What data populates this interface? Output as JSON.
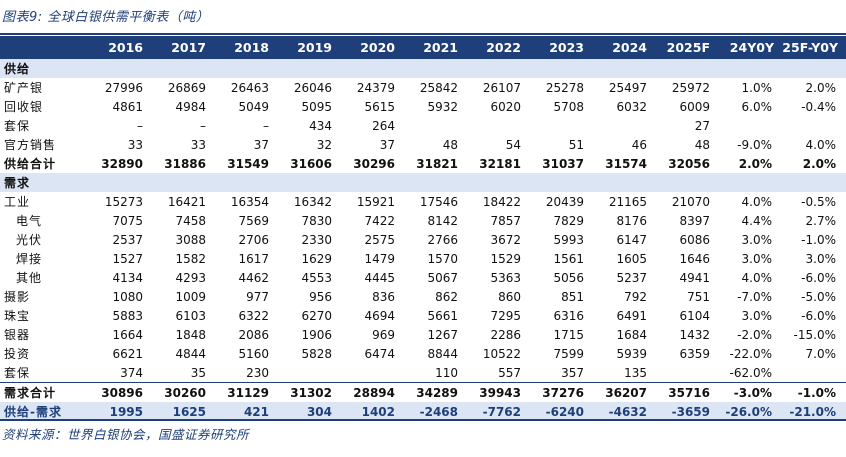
{
  "title": "图表9:  全球白银供需平衡表（吨）",
  "source": "资料来源：世界白银协会，国盛证券研究所",
  "headers": [
    "",
    "2016",
    "2017",
    "2018",
    "2019",
    "2020",
    "2021",
    "2022",
    "2023",
    "2024",
    "2025F",
    "24Y0Y",
    "25F-Y0Y"
  ],
  "rows": [
    {
      "type": "section",
      "cells": [
        "供给",
        "",
        "",
        "",
        "",
        "",
        "",
        "",
        "",
        "",
        "",
        "",
        ""
      ]
    },
    {
      "type": "data",
      "cells": [
        "矿产银",
        "27996",
        "26869",
        "26463",
        "26046",
        "24379",
        "25842",
        "26107",
        "25278",
        "25497",
        "25972",
        "1.0%",
        "2.0%"
      ]
    },
    {
      "type": "data",
      "cells": [
        "回收银",
        "4861",
        "4984",
        "5049",
        "5095",
        "5615",
        "5932",
        "6020",
        "5708",
        "6032",
        "6009",
        "6.0%",
        "-0.4%"
      ]
    },
    {
      "type": "data",
      "cells": [
        "套保",
        "–",
        "–",
        "–",
        "434",
        "264",
        "",
        "",
        "",
        "",
        "27",
        "",
        ""
      ]
    },
    {
      "type": "data",
      "cells": [
        "官方销售",
        "33",
        "33",
        "37",
        "32",
        "37",
        "48",
        "54",
        "51",
        "46",
        "48",
        "-9.0%",
        "4.0%"
      ]
    },
    {
      "type": "total",
      "cells": [
        "供给合计",
        "32890",
        "31886",
        "31549",
        "31606",
        "30296",
        "31821",
        "32181",
        "31037",
        "31574",
        "32056",
        "2.0%",
        "2.0%"
      ]
    },
    {
      "type": "section",
      "cells": [
        "需求",
        "",
        "",
        "",
        "",
        "",
        "",
        "",
        "",
        "",
        "",
        "",
        ""
      ]
    },
    {
      "type": "data",
      "cells": [
        "工业",
        "15273",
        "16421",
        "16354",
        "16342",
        "15921",
        "17546",
        "18422",
        "20439",
        "21165",
        "21070",
        "4.0%",
        "-0.5%"
      ]
    },
    {
      "type": "sub",
      "cells": [
        "电气",
        "7075",
        "7458",
        "7569",
        "7830",
        "7422",
        "8142",
        "7857",
        "7829",
        "8176",
        "8397",
        "4.4%",
        "2.7%"
      ]
    },
    {
      "type": "sub",
      "cells": [
        "光伏",
        "2537",
        "3088",
        "2706",
        "2330",
        "2575",
        "2766",
        "3672",
        "5993",
        "6147",
        "6086",
        "3.0%",
        "-1.0%"
      ]
    },
    {
      "type": "sub",
      "cells": [
        "焊接",
        "1527",
        "1582",
        "1617",
        "1629",
        "1479",
        "1570",
        "1529",
        "1561",
        "1605",
        "1646",
        "3.0%",
        "3.0%"
      ]
    },
    {
      "type": "sub",
      "cells": [
        "其他",
        "4134",
        "4293",
        "4462",
        "4553",
        "4445",
        "5067",
        "5363",
        "5056",
        "5237",
        "4941",
        "4.0%",
        "-6.0%"
      ]
    },
    {
      "type": "data",
      "cells": [
        "摄影",
        "1080",
        "1009",
        "977",
        "956",
        "836",
        "862",
        "860",
        "851",
        "792",
        "751",
        "-7.0%",
        "-5.0%"
      ]
    },
    {
      "type": "data",
      "cells": [
        "珠宝",
        "5883",
        "6103",
        "6322",
        "6270",
        "4694",
        "5661",
        "7295",
        "6316",
        "6491",
        "6104",
        "3.0%",
        "-6.0%"
      ]
    },
    {
      "type": "data",
      "cells": [
        "银器",
        "1664",
        "1848",
        "2086",
        "1906",
        "969",
        "1267",
        "2286",
        "1715",
        "1684",
        "1432",
        "-2.0%",
        "-15.0%"
      ]
    },
    {
      "type": "data",
      "cells": [
        "投资",
        "6621",
        "4844",
        "5160",
        "5828",
        "6474",
        "8844",
        "10522",
        "7599",
        "5939",
        "6359",
        "-22.0%",
        "7.0%"
      ]
    },
    {
      "type": "data",
      "cells": [
        "套保",
        "374",
        "35",
        "230",
        "",
        "",
        "110",
        "557",
        "357",
        "135",
        "",
        "-62.0%",
        ""
      ]
    },
    {
      "type": "total",
      "cells": [
        "需求合计",
        "30896",
        "30260",
        "31129",
        "31302",
        "28894",
        "34289",
        "39943",
        "37276",
        "36207",
        "35716",
        "-3.0%",
        "-1.0%"
      ]
    },
    {
      "type": "balance",
      "cells": [
        "供给-需求",
        "1995",
        "1625",
        "421",
        "304",
        "1402",
        "-2468",
        "-7762",
        "-6240",
        "-4632",
        "-3659",
        "-26.0%",
        "-21.0%"
      ]
    }
  ]
}
